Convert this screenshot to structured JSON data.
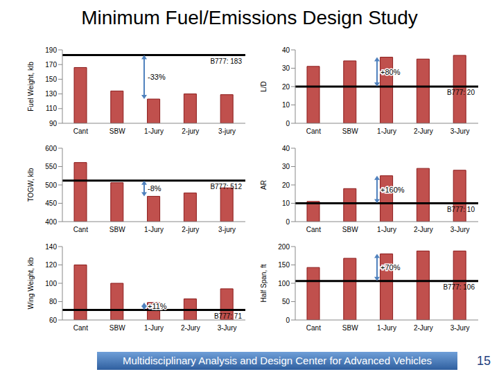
{
  "title": "Minimum Fuel/Emissions Design Study",
  "footer": "Multidisciplinary Analysis and Design Center for Advanced Vehicles",
  "page": 15,
  "chart_data": [
    {
      "type": "bar",
      "ylabel": "Fuel Weight, klb",
      "categories": [
        "Cant",
        "SBW",
        "1-Jury",
        "2-jury",
        "3-jury"
      ],
      "values": [
        166,
        134,
        123,
        130,
        129
      ],
      "color": "#c0504d",
      "ylim": [
        90,
        190
      ],
      "yticks": [
        90,
        110,
        130,
        150,
        170,
        190
      ],
      "reference": {
        "label": "B777: 183",
        "value": 183
      },
      "annotation": {
        "text": "-33%",
        "category": "1-Jury"
      }
    },
    {
      "type": "bar",
      "ylabel": "L/D",
      "categories": [
        "Cant",
        "SBW",
        "1-Jury",
        "2-Jury",
        "3-Jury"
      ],
      "values": [
        31,
        34,
        36,
        35,
        37
      ],
      "color": "#c0504d",
      "ylim": [
        0,
        40
      ],
      "yticks": [
        0,
        10,
        20,
        30,
        40
      ],
      "reference": {
        "label": "B777: 20",
        "value": 20
      },
      "annotation": {
        "text": "+80%",
        "category": "1-Jury"
      }
    },
    {
      "type": "bar",
      "ylabel": "TOGW, klb",
      "categories": [
        "Cant",
        "SBW",
        "1-Jury",
        "2-jury",
        "3-jury"
      ],
      "values": [
        561,
        506,
        469,
        478,
        492
      ],
      "color": "#c0504d",
      "ylim": [
        400,
        600
      ],
      "yticks": [
        400,
        450,
        500,
        550,
        600
      ],
      "reference": {
        "label": "B777: 512",
        "value": 512
      },
      "annotation": {
        "text": "-8%",
        "category": "1-Jury"
      }
    },
    {
      "type": "bar",
      "ylabel": "AR",
      "categories": [
        "Cant",
        "SBW",
        "1-Jury",
        "2-Jury",
        "3-Jury"
      ],
      "values": [
        11,
        18,
        25,
        29,
        28
      ],
      "color": "#c0504d",
      "ylim": [
        0,
        40
      ],
      "yticks": [
        0,
        10,
        20,
        30,
        40
      ],
      "reference": {
        "label": "B777: 10",
        "value": 10
      },
      "annotation": {
        "text": "+160%",
        "category": "1-Jury"
      }
    },
    {
      "type": "bar",
      "ylabel": "Wing Weight, klb",
      "categories": [
        "Cant",
        "SBW",
        "1-Jury",
        "2-Jury",
        "3-Jury"
      ],
      "values": [
        120,
        100,
        79,
        83,
        94
      ],
      "color": "#c0504d",
      "ylim": [
        60,
        140
      ],
      "yticks": [
        60,
        80,
        100,
        120,
        140
      ],
      "reference": {
        "label": "B777: 71",
        "value": 71
      },
      "annotation": {
        "text": "+11%",
        "category": "1-Jury"
      }
    },
    {
      "type": "bar",
      "ylabel": "Half Span, ft",
      "categories": [
        "Cant",
        "SBW",
        "1-Jury",
        "2-Jury",
        "3-Jury"
      ],
      "values": [
        143,
        168,
        180,
        188,
        188
      ],
      "color": "#c0504d",
      "ylim": [
        0,
        200
      ],
      "yticks": [
        0,
        50,
        100,
        150,
        200
      ],
      "reference": {
        "label": "B777: 106",
        "value": 106
      },
      "annotation": {
        "text": "+70%",
        "category": "1-Jury"
      }
    }
  ]
}
